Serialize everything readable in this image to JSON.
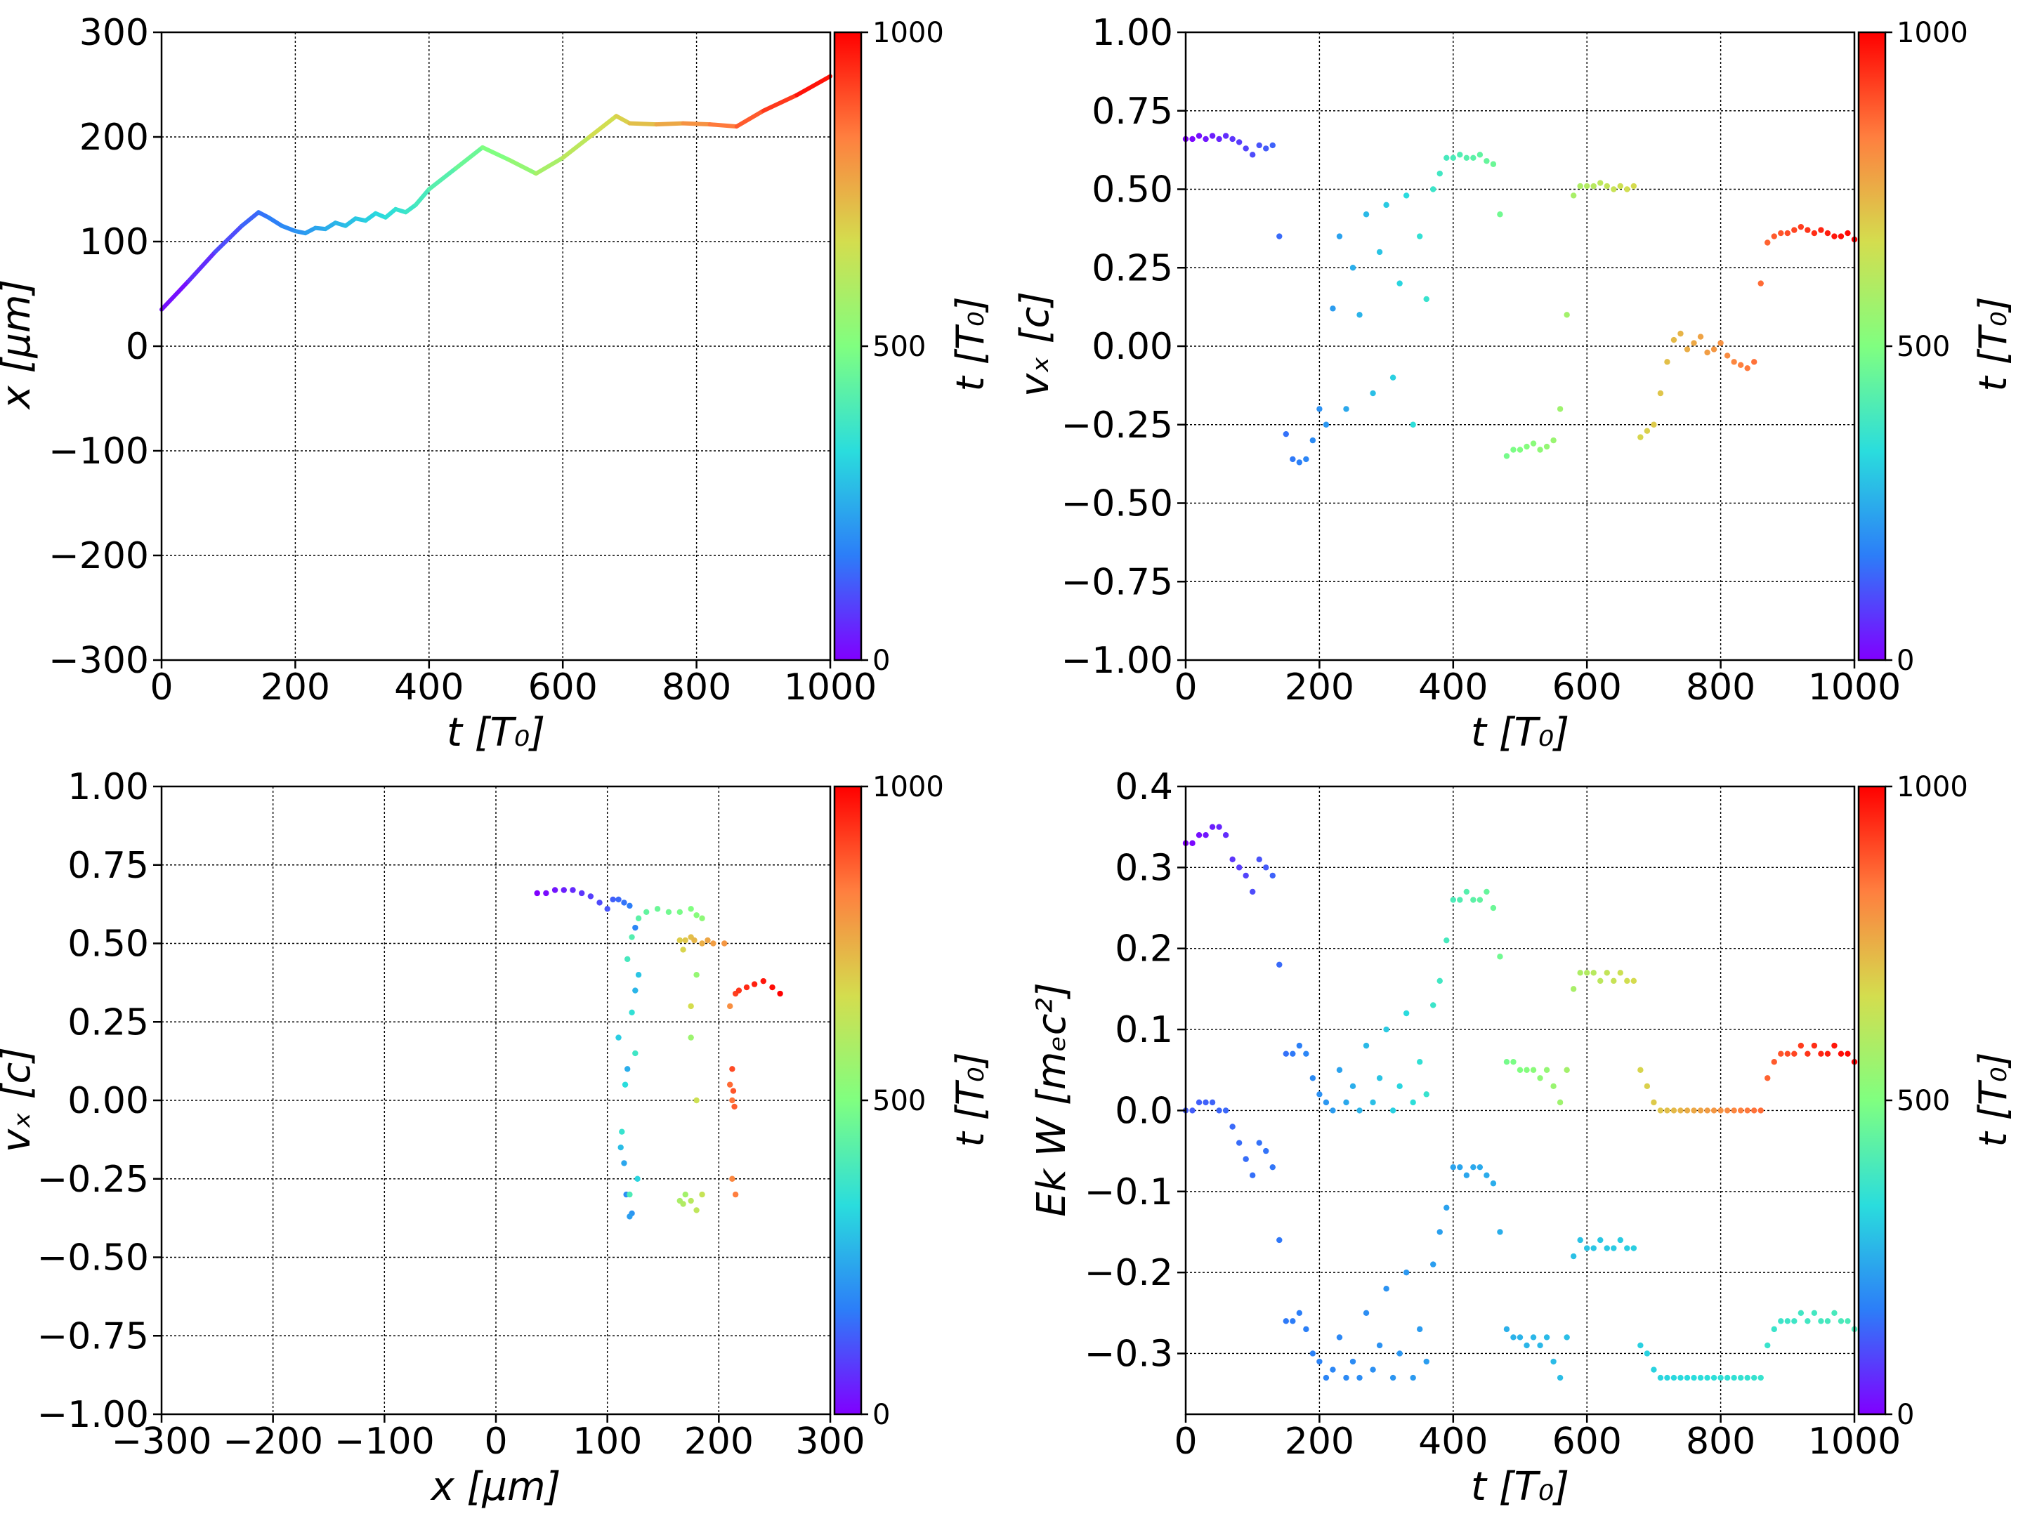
{
  "colormap": {
    "name": "rainbow",
    "stops": [
      "#8000ff",
      "#2c7ef8",
      "#2adddd",
      "#80ff80",
      "#d4dd4e",
      "#ff7f3f",
      "#ff0000"
    ]
  },
  "colorbar": {
    "label": "t [T₀]",
    "ticks": [
      "0",
      "500",
      "1000"
    ],
    "range": [
      0,
      1000
    ]
  },
  "chart_data": [
    {
      "type": "line",
      "xlabel": "t  [T₀]",
      "ylabel": "x  [μm]",
      "xlim": [
        0,
        1000
      ],
      "ylim": [
        -300,
        300
      ],
      "xticks": [
        0,
        200,
        400,
        600,
        800,
        1000
      ],
      "yticks": [
        -300,
        -200,
        -100,
        0,
        100,
        200,
        300
      ],
      "grid": true,
      "colorbar": "t [T₀]",
      "series": [
        {
          "x": [
            0,
            40,
            80,
            120,
            145,
            160,
            180,
            200,
            215,
            230,
            245,
            260,
            275,
            290,
            305,
            320,
            335,
            350,
            365,
            380,
            400,
            440,
            480,
            520,
            560,
            600,
            640,
            680,
            700,
            740,
            780,
            820,
            860,
            900,
            950,
            1000
          ],
          "y": [
            35,
            62,
            90,
            115,
            128,
            123,
            115,
            110,
            108,
            113,
            112,
            118,
            115,
            122,
            120,
            127,
            123,
            131,
            128,
            135,
            150,
            170,
            190,
            178,
            165,
            180,
            200,
            220,
            213,
            212,
            213,
            212,
            210,
            225,
            240,
            258
          ]
        }
      ]
    },
    {
      "type": "scatter",
      "xlabel": "t [T₀]",
      "ylabel": "vₓ [c]",
      "xlim": [
        0,
        1000
      ],
      "ylim": [
        -1.0,
        1.0
      ],
      "xticks": [
        0,
        200,
        400,
        600,
        800,
        1000
      ],
      "yticks": [
        -1.0,
        -0.75,
        -0.5,
        -0.25,
        0.0,
        0.25,
        0.5,
        0.75,
        1.0
      ],
      "grid": true,
      "colorbar": "t [T₀]",
      "series": [
        {
          "x": [
            0,
            10,
            20,
            30,
            40,
            50,
            60,
            70,
            80,
            90,
            100,
            110,
            120,
            130,
            140,
            150,
            160,
            170,
            180,
            190,
            200,
            210,
            220,
            230,
            240,
            250,
            260,
            270,
            280,
            290,
            300,
            310,
            320,
            330,
            340,
            350,
            360,
            370,
            380,
            390,
            400,
            410,
            420,
            430,
            440,
            450,
            460,
            470,
            480,
            490,
            500,
            510,
            520,
            530,
            540,
            550,
            560,
            570,
            580,
            590,
            600,
            610,
            620,
            630,
            640,
            650,
            660,
            670,
            680,
            690,
            700,
            710,
            720,
            730,
            740,
            750,
            760,
            770,
            780,
            790,
            800,
            810,
            820,
            830,
            840,
            850,
            860,
            870,
            880,
            890,
            900,
            910,
            920,
            930,
            940,
            950,
            960,
            970,
            980,
            990,
            1000
          ],
          "y": [
            0.66,
            0.66,
            0.67,
            0.66,
            0.67,
            0.66,
            0.67,
            0.66,
            0.65,
            0.63,
            0.61,
            0.64,
            0.63,
            0.64,
            0.35,
            -0.28,
            -0.36,
            -0.37,
            -0.36,
            -0.3,
            -0.2,
            -0.25,
            0.12,
            0.35,
            -0.2,
            0.25,
            0.1,
            0.42,
            -0.15,
            0.3,
            0.45,
            -0.1,
            0.2,
            0.48,
            -0.25,
            0.35,
            0.15,
            0.5,
            0.55,
            0.6,
            0.6,
            0.61,
            0.6,
            0.6,
            0.61,
            0.59,
            0.58,
            0.42,
            -0.35,
            -0.33,
            -0.33,
            -0.32,
            -0.31,
            -0.33,
            -0.32,
            -0.3,
            -0.2,
            0.1,
            0.48,
            0.51,
            0.51,
            0.51,
            0.52,
            0.51,
            0.5,
            0.51,
            0.5,
            0.51,
            -0.29,
            -0.27,
            -0.25,
            -0.15,
            -0.05,
            0.02,
            0.04,
            -0.01,
            0.01,
            0.03,
            -0.02,
            -0.01,
            0.01,
            -0.03,
            -0.05,
            -0.06,
            -0.07,
            -0.05,
            0.2,
            0.33,
            0.35,
            0.36,
            0.36,
            0.37,
            0.38,
            0.37,
            0.36,
            0.37,
            0.36,
            0.35,
            0.35,
            0.36,
            0.34
          ]
        }
      ]
    },
    {
      "type": "scatter",
      "xlabel": "x [μm]",
      "ylabel": "vₓ [c]",
      "xlim": [
        -300,
        300
      ],
      "ylim": [
        -1.0,
        1.0
      ],
      "xticks": [
        -300,
        -200,
        -100,
        0,
        100,
        200,
        300
      ],
      "yticks": [
        -1.0,
        -0.75,
        -0.5,
        -0.25,
        0.0,
        0.25,
        0.5,
        0.75,
        1.0
      ],
      "grid": true,
      "colorbar": "t [T₀]",
      "series": [
        {
          "x": [
            37,
            45,
            53,
            61,
            69,
            77,
            85,
            93,
            100,
            105,
            110,
            115,
            120,
            125,
            117,
            122,
            120,
            115,
            118,
            125,
            112,
            128,
            110,
            127,
            116,
            122,
            113,
            125,
            118,
            120,
            122,
            128,
            135,
            145,
            155,
            165,
            175,
            180,
            185,
            180,
            175,
            170,
            165,
            168,
            175,
            180,
            185,
            180,
            175,
            168,
            165,
            170,
            175,
            178,
            185,
            190,
            195,
            205,
            210,
            212,
            215,
            212,
            210,
            214,
            213,
            212,
            215,
            218,
            225,
            232,
            240,
            248,
            255
          ],
          "y": [
            0.66,
            0.66,
            0.67,
            0.67,
            0.67,
            0.66,
            0.65,
            0.63,
            0.61,
            0.64,
            0.64,
            0.63,
            0.62,
            0.55,
            -0.3,
            -0.36,
            -0.37,
            -0.2,
            0.1,
            0.35,
            -0.15,
            0.4,
            0.2,
            -0.25,
            0.05,
            0.28,
            -0.1,
            0.15,
            0.45,
            -0.3,
            0.52,
            0.58,
            0.6,
            0.61,
            0.6,
            0.6,
            0.61,
            0.59,
            0.58,
            0.4,
            0.2,
            -0.3,
            -0.32,
            -0.33,
            -0.32,
            -0.35,
            -0.3,
            0.0,
            0.3,
            0.48,
            0.51,
            0.51,
            0.52,
            0.51,
            0.5,
            0.51,
            0.5,
            0.5,
            0.3,
            -0.25,
            -0.3,
            0.0,
            0.05,
            -0.02,
            0.03,
            0.1,
            0.34,
            0.35,
            0.36,
            0.37,
            0.38,
            0.36,
            0.34
          ]
        }
      ]
    },
    {
      "type": "scatter",
      "xlabel": "t [T₀]",
      "ylabel": "Ek W [mₑc²]",
      "xlim": [
        0,
        1000
      ],
      "ylim": [
        -0.375,
        0.4
      ],
      "xticks": [
        0,
        200,
        400,
        600,
        800,
        1000
      ],
      "yticks": [
        -0.3,
        -0.2,
        -0.1,
        0.0,
        0.1,
        0.2,
        0.3,
        0.4
      ],
      "grid": true,
      "colorbar": "t [T₀]",
      "series": [
        {
          "name": "Ek",
          "x": [
            0,
            10,
            20,
            30,
            40,
            50,
            60,
            70,
            80,
            90,
            100,
            110,
            120,
            130,
            140,
            150,
            160,
            170,
            180,
            190,
            200,
            210,
            220,
            230,
            240,
            250,
            260,
            270,
            280,
            290,
            300,
            310,
            320,
            330,
            340,
            350,
            360,
            370,
            380,
            390,
            400,
            410,
            420,
            430,
            440,
            450,
            460,
            470,
            480,
            490,
            500,
            510,
            520,
            530,
            540,
            550,
            560,
            570,
            580,
            590,
            600,
            610,
            620,
            630,
            640,
            650,
            660,
            670,
            680,
            690,
            700,
            710,
            720,
            730,
            740,
            750,
            760,
            770,
            780,
            790,
            800,
            810,
            820,
            830,
            840,
            850,
            860,
            870,
            880,
            890,
            900,
            910,
            920,
            930,
            940,
            950,
            960,
            970,
            980,
            990,
            1000
          ],
          "y": [
            0.33,
            0.33,
            0.34,
            0.34,
            0.35,
            0.35,
            0.34,
            0.31,
            0.3,
            0.29,
            0.27,
            0.31,
            0.3,
            0.29,
            0.18,
            0.07,
            0.07,
            0.08,
            0.07,
            0.04,
            0.02,
            0.01,
            0.0,
            0.05,
            0.01,
            0.03,
            0.0,
            0.08,
            0.01,
            0.04,
            0.1,
            0.0,
            0.03,
            0.12,
            0.01,
            0.06,
            0.02,
            0.13,
            0.16,
            0.21,
            0.26,
            0.26,
            0.27,
            0.26,
            0.26,
            0.27,
            0.25,
            0.19,
            0.06,
            0.06,
            0.05,
            0.05,
            0.05,
            0.04,
            0.05,
            0.03,
            0.01,
            0.05,
            0.15,
            0.17,
            0.17,
            0.17,
            0.16,
            0.17,
            0.16,
            0.17,
            0.16,
            0.16,
            0.05,
            0.03,
            0.01,
            0.0,
            0.0,
            0.0,
            0.0,
            0.0,
            0.0,
            0.0,
            0.0,
            0.0,
            0.0,
            0.0,
            0.0,
            0.0,
            0.0,
            0.0,
            0.0,
            0.04,
            0.06,
            0.07,
            0.07,
            0.07,
            0.08,
            0.07,
            0.08,
            0.07,
            0.07,
            0.08,
            0.07,
            0.07,
            0.06
          ]
        },
        {
          "name": "W",
          "x": [
            0,
            10,
            20,
            30,
            40,
            50,
            60,
            70,
            80,
            90,
            100,
            110,
            120,
            130,
            140,
            150,
            160,
            170,
            180,
            190,
            200,
            210,
            220,
            230,
            240,
            250,
            260,
            270,
            280,
            290,
            300,
            310,
            320,
            330,
            340,
            350,
            360,
            370,
            380,
            390,
            400,
            410,
            420,
            430,
            440,
            450,
            460,
            470,
            480,
            490,
            500,
            510,
            520,
            530,
            540,
            550,
            560,
            570,
            580,
            590,
            600,
            610,
            620,
            630,
            640,
            650,
            660,
            670,
            680,
            690,
            700,
            710,
            720,
            730,
            740,
            750,
            760,
            770,
            780,
            790,
            800,
            810,
            820,
            830,
            840,
            850,
            860,
            870,
            880,
            890,
            900,
            910,
            920,
            930,
            940,
            950,
            960,
            970,
            980,
            990,
            1000
          ],
          "y": [
            0.0,
            0.0,
            0.01,
            0.01,
            0.01,
            0.0,
            0.0,
            -0.02,
            -0.04,
            -0.06,
            -0.08,
            -0.04,
            -0.05,
            -0.07,
            -0.16,
            -0.26,
            -0.26,
            -0.25,
            -0.27,
            -0.3,
            -0.31,
            -0.33,
            -0.32,
            -0.28,
            -0.33,
            -0.31,
            -0.33,
            -0.25,
            -0.32,
            -0.29,
            -0.22,
            -0.33,
            -0.3,
            -0.2,
            -0.33,
            -0.27,
            -0.31,
            -0.19,
            -0.15,
            -0.12,
            -0.07,
            -0.07,
            -0.08,
            -0.07,
            -0.07,
            -0.08,
            -0.09,
            -0.15,
            -0.27,
            -0.28,
            -0.28,
            -0.29,
            -0.28,
            -0.29,
            -0.28,
            -0.31,
            -0.33,
            -0.28,
            -0.18,
            -0.16,
            -0.17,
            -0.17,
            -0.16,
            -0.17,
            -0.17,
            -0.16,
            -0.17,
            -0.17,
            -0.29,
            -0.3,
            -0.32,
            -0.33,
            -0.33,
            -0.33,
            -0.33,
            -0.33,
            -0.33,
            -0.33,
            -0.33,
            -0.33,
            -0.33,
            -0.33,
            -0.33,
            -0.33,
            -0.33,
            -0.33,
            -0.33,
            -0.29,
            -0.27,
            -0.26,
            -0.26,
            -0.26,
            -0.25,
            -0.26,
            -0.25,
            -0.26,
            -0.26,
            -0.25,
            -0.26,
            -0.26,
            -0.27
          ]
        }
      ]
    }
  ]
}
